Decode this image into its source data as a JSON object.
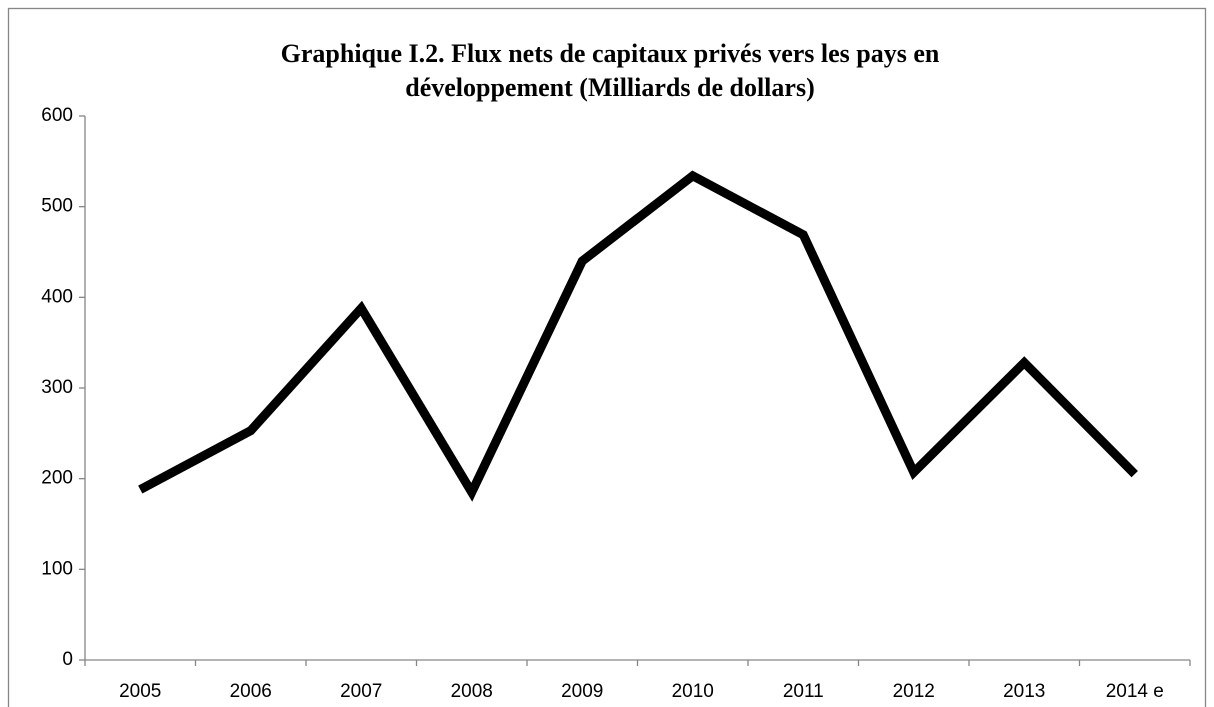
{
  "chart_data": {
    "type": "line",
    "title": [
      "Graphique I.2. Flux nets de capitaux privés vers les pays en",
      "développement (Milliards de dollars)"
    ],
    "categories": [
      "2005",
      "2006",
      "2007",
      "2008",
      "2009",
      "2010",
      "2011",
      "2012",
      "2013",
      "2014 e"
    ],
    "values": [
      188,
      253,
      388,
      185,
      440,
      534,
      469,
      207,
      328,
      205
    ],
    "color": "#000000",
    "ylim": [
      0,
      600
    ],
    "yticks": [
      0,
      100,
      200,
      300,
      400,
      500,
      600
    ],
    "grid": false
  }
}
